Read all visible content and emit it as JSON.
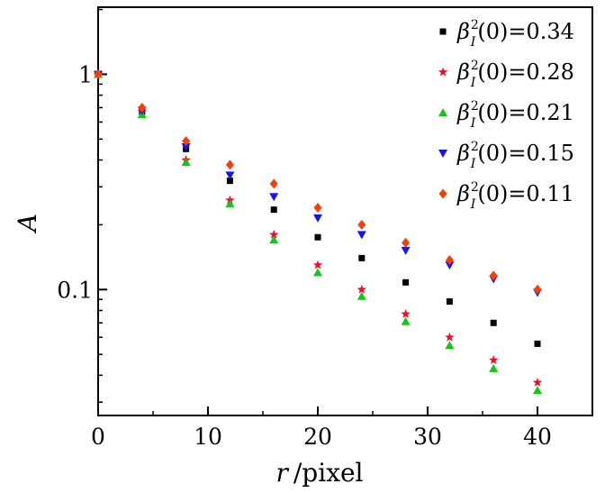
{
  "chart_data": {
    "type": "scatter",
    "title": "",
    "xlabel": {
      "symbol": "r",
      "unit": "/pixel"
    },
    "ylabel": "A",
    "xlim": [
      0,
      45
    ],
    "ylim": [
      0.026,
      2.05
    ],
    "yscale": "log",
    "x_ticks": [
      0,
      10,
      20,
      30,
      40
    ],
    "x_tick_labels": [
      "0",
      "10",
      "20",
      "30",
      "40"
    ],
    "y_ticks": [
      0.1,
      1
    ],
    "y_tick_labels": [
      "0.1",
      "1"
    ],
    "legend_position": "top-right",
    "x": [
      0,
      4,
      8,
      12,
      16,
      20,
      24,
      28,
      32,
      36,
      40
    ],
    "series": [
      {
        "name": "β_I^2(0)=0.34",
        "label_sup": "2",
        "label_sub": "I",
        "label_value": "(0)=0.34",
        "color": "#000000",
        "marker": "square",
        "values": [
          1.0,
          0.67,
          0.45,
          0.32,
          0.235,
          0.175,
          0.14,
          0.108,
          0.088,
          0.07,
          0.056
        ]
      },
      {
        "name": "β_I^2(0)=0.28",
        "label_sup": "2",
        "label_sub": "I",
        "label_value": "(0)=0.28",
        "color": "#e8112d",
        "marker": "star",
        "values": [
          1.0,
          0.67,
          0.4,
          0.26,
          0.18,
          0.13,
          0.1,
          0.077,
          0.06,
          0.047,
          0.037
        ]
      },
      {
        "name": "β_I^2(0)=0.21",
        "label_sup": "2",
        "label_sub": "I",
        "label_value": "(0)=0.21",
        "color": "#18c418",
        "marker": "triangle-up",
        "values": [
          1.0,
          0.65,
          0.39,
          0.25,
          0.17,
          0.12,
          0.093,
          0.071,
          0.055,
          0.043,
          0.034
        ]
      },
      {
        "name": "β_I^2(0)=0.15",
        "label_sup": "2",
        "label_sub": "I",
        "label_value": "(0)=0.15",
        "color": "#1515ee",
        "marker": "triangle-down",
        "values": [
          1.0,
          0.68,
          0.46,
          0.34,
          0.27,
          0.215,
          0.18,
          0.152,
          0.13,
          0.112,
          0.097
        ]
      },
      {
        "name": "β_I^2(0)=0.11",
        "label_sup": "2",
        "label_sub": "I",
        "label_value": "(0)=0.11",
        "color": "#f2400a",
        "marker": "diamond",
        "values": [
          1.0,
          0.7,
          0.49,
          0.38,
          0.31,
          0.24,
          0.2,
          0.165,
          0.137,
          0.116,
          0.1
        ]
      }
    ]
  }
}
